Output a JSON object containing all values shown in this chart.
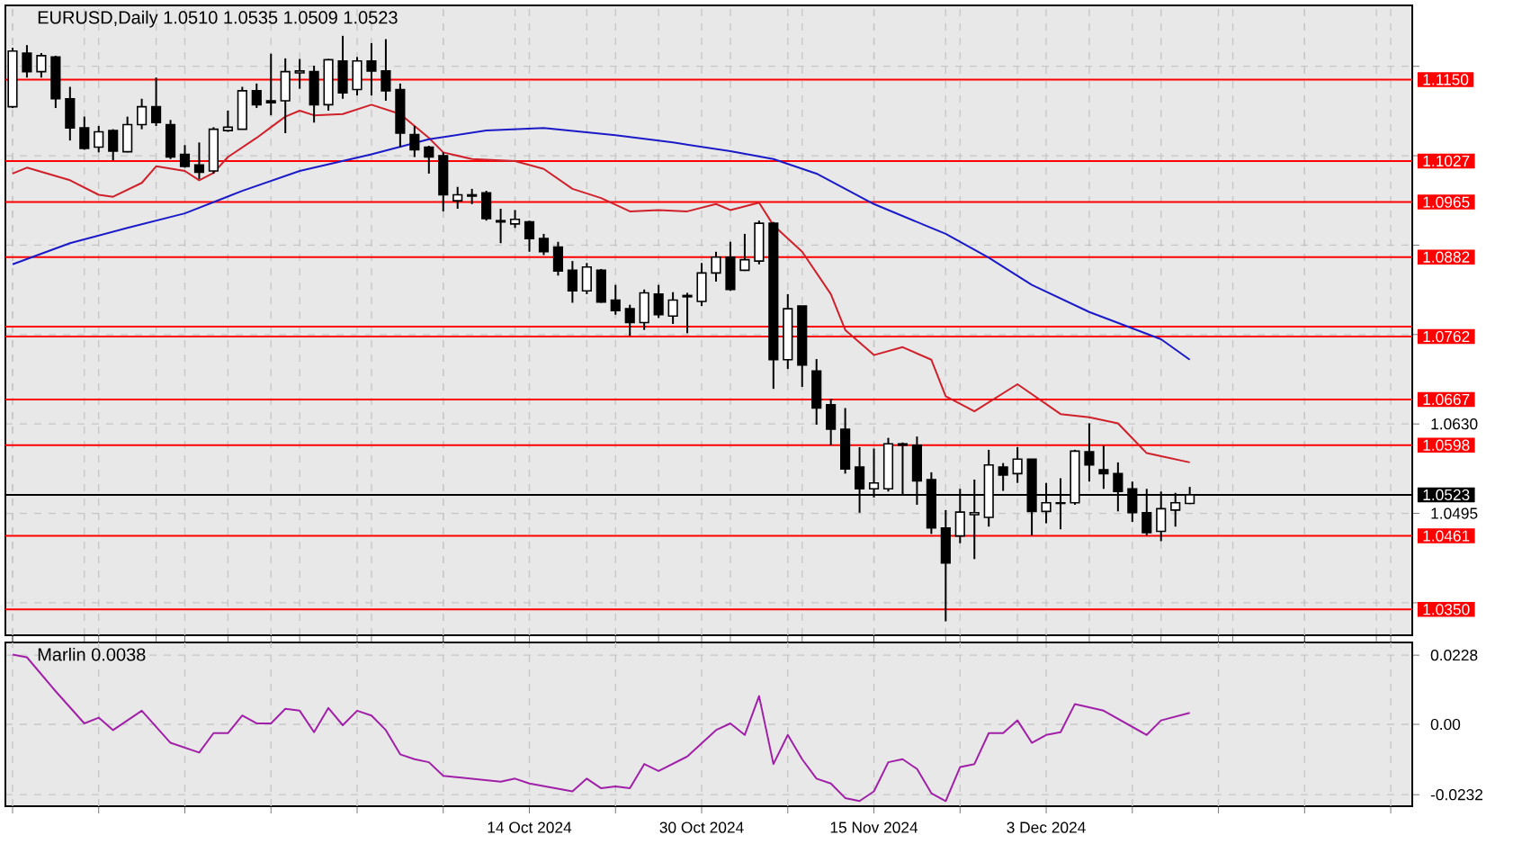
{
  "chart_data": [
    {
      "type": "candlestick",
      "title": "EURUSD,Daily  1.0510 1.0535 1.0509 1.0523",
      "categories": [
        null,
        null,
        null,
        null,
        null,
        null,
        null,
        null,
        null,
        null,
        null,
        null,
        null,
        null,
        null,
        null,
        null,
        null,
        null,
        null,
        null,
        null,
        null,
        null,
        null,
        null,
        null,
        null,
        null,
        null,
        null,
        null,
        null,
        null,
        null,
        null,
        null,
        null,
        null,
        null,
        null,
        null,
        null,
        null,
        null,
        null,
        null,
        null,
        null,
        null,
        null,
        null,
        null,
        null,
        null,
        null,
        null,
        null,
        null,
        null,
        null,
        null,
        null,
        null,
        null,
        null,
        null,
        null,
        null,
        null,
        null,
        null,
        null,
        null,
        null,
        null,
        null,
        null,
        null,
        null,
        null,
        null,
        null,
        null,
        null,
        null,
        null,
        null,
        null,
        null,
        null,
        null,
        null,
        null,
        null,
        null,
        null,
        null
      ],
      "ohlc": [
        [
          1.1109,
          1.1198,
          1.1107,
          1.1193
        ],
        [
          1.119,
          1.1202,
          1.1153,
          1.1162
        ],
        [
          1.1162,
          1.119,
          1.1153,
          1.1186
        ],
        [
          1.1184,
          1.1186,
          1.1107,
          1.1121
        ],
        [
          1.1121,
          1.1139,
          1.1058,
          1.1077
        ],
        [
          1.1077,
          1.1094,
          1.1044,
          1.1046
        ],
        [
          1.1048,
          1.108,
          1.104,
          1.1071
        ],
        [
          1.1073,
          1.1075,
          1.1028,
          1.1042
        ],
        [
          1.1041,
          1.1094,
          1.104,
          1.1082
        ],
        [
          1.1082,
          1.1121,
          1.1075,
          1.1109
        ],
        [
          1.1109,
          1.1153,
          1.108,
          1.1085
        ],
        [
          1.1082,
          1.1089,
          1.103,
          1.1033
        ],
        [
          1.1037,
          1.1051,
          1.1017,
          1.1019
        ],
        [
          1.1021,
          1.1055,
          1.1,
          1.101
        ],
        [
          1.1012,
          1.1078,
          1.1008,
          1.1075
        ],
        [
          1.1073,
          1.1103,
          1.1071,
          1.1078
        ],
        [
          1.1075,
          1.1139,
          1.1075,
          1.1133
        ],
        [
          1.1133,
          1.1144,
          1.1107,
          1.1112
        ],
        [
          1.1118,
          1.1189,
          1.1096,
          1.1115
        ],
        [
          1.1118,
          1.1182,
          1.1069,
          1.1162
        ],
        [
          1.116,
          1.1181,
          1.1136,
          1.1163
        ],
        [
          1.1162,
          1.1171,
          1.1085,
          1.1112
        ],
        [
          1.1112,
          1.1181,
          1.1103,
          1.118
        ],
        [
          1.1178,
          1.1216,
          1.1121,
          1.113
        ],
        [
          1.1135,
          1.1184,
          1.1126,
          1.1178
        ],
        [
          1.1178,
          1.1205,
          1.1126,
          1.1163
        ],
        [
          1.1163,
          1.1211,
          1.1118,
          1.1133
        ],
        [
          1.1135,
          1.1144,
          1.1048,
          1.1069
        ],
        [
          1.1067,
          1.108,
          1.1033,
          1.1044
        ],
        [
          1.1048,
          1.105,
          1.1008,
          1.1033
        ],
        [
          1.1035,
          1.104,
          1.0951,
          1.0976
        ],
        [
          1.0967,
          1.0988,
          1.0955,
          1.0976
        ],
        [
          1.0976,
          1.0985,
          1.0962,
          1.0974
        ],
        [
          1.0979,
          1.0982,
          1.0937,
          1.094
        ],
        [
          1.0937,
          1.0955,
          1.0903,
          1.0935
        ],
        [
          1.0932,
          1.0953,
          1.0926,
          1.0939
        ],
        [
          1.0935,
          1.0937,
          1.089,
          1.091
        ],
        [
          1.091,
          1.0917,
          1.0885,
          1.089
        ],
        [
          1.0897,
          1.0905,
          1.0854,
          1.0861
        ],
        [
          1.0862,
          1.0876,
          1.0813,
          1.0831
        ],
        [
          1.0831,
          1.0873,
          1.0826,
          1.0867
        ],
        [
          1.0862,
          1.0864,
          1.0813,
          1.0814
        ],
        [
          1.0817,
          1.084,
          1.0795,
          1.0801
        ],
        [
          1.0804,
          1.081,
          1.0763,
          1.0783
        ],
        [
          1.0783,
          1.0833,
          1.0772,
          1.0828
        ],
        [
          1.0826,
          1.084,
          1.079,
          1.0795
        ],
        [
          1.0793,
          1.0829,
          1.0781,
          1.0817
        ],
        [
          1.0822,
          1.0828,
          1.0767,
          1.0824
        ],
        [
          1.0815,
          1.0873,
          1.0808,
          1.0858
        ],
        [
          1.0858,
          1.089,
          1.0845,
          1.0882
        ],
        [
          1.0882,
          1.0905,
          1.0831,
          1.0833
        ],
        [
          1.0862,
          1.0917,
          1.0861,
          1.0878
        ],
        [
          1.0876,
          1.0937,
          1.0871,
          1.0933
        ],
        [
          1.0933,
          1.0935,
          1.0683,
          1.0727
        ],
        [
          1.0727,
          1.0826,
          1.0713,
          1.0804
        ],
        [
          1.0808,
          1.0808,
          1.0686,
          1.0719
        ],
        [
          1.071,
          1.0728,
          1.0629,
          1.0654
        ],
        [
          1.0659,
          1.0668,
          1.0598,
          1.0622
        ],
        [
          1.0622,
          1.0654,
          1.0555,
          1.0562
        ],
        [
          1.0565,
          1.0595,
          1.0496,
          1.0532
        ],
        [
          1.0532,
          1.0593,
          1.0519,
          1.0541
        ],
        [
          1.0532,
          1.0609,
          1.0528,
          1.06
        ],
        [
          1.0598,
          1.0602,
          1.0523,
          1.06
        ],
        [
          1.0598,
          1.0611,
          1.0508,
          1.0544
        ],
        [
          1.0546,
          1.0557,
          1.0464,
          1.0473
        ],
        [
          1.0473,
          1.05,
          1.0332,
          1.042
        ],
        [
          1.0461,
          1.0532,
          1.045,
          1.0497
        ],
        [
          1.0493,
          1.0546,
          1.0426,
          1.0496
        ],
        [
          1.0489,
          1.0591,
          1.0475,
          1.0568
        ],
        [
          1.0565,
          1.0571,
          1.0529,
          1.0553
        ],
        [
          1.0555,
          1.0595,
          1.0541,
          1.0577
        ],
        [
          1.0577,
          1.0577,
          1.0462,
          1.0498
        ],
        [
          1.0498,
          1.0541,
          1.048,
          1.0511
        ],
        [
          1.051,
          1.0548,
          1.0471,
          1.0511
        ],
        [
          1.0511,
          1.0591,
          1.0508,
          1.0589
        ],
        [
          1.0588,
          1.0631,
          1.0543,
          1.0568
        ],
        [
          1.0561,
          1.0597,
          1.0532,
          1.0555
        ],
        [
          1.0555,
          1.0572,
          1.0498,
          1.0528
        ],
        [
          1.0532,
          1.0543,
          1.0482,
          1.0496
        ],
        [
          1.0496,
          1.0532,
          1.0462,
          1.0466
        ],
        [
          1.0468,
          1.0528,
          1.0453,
          1.0502
        ],
        [
          1.05,
          1.0526,
          1.0475,
          1.0511
        ],
        [
          1.051,
          1.0535,
          1.0509,
          1.0523
        ],
        null,
        null,
        null,
        null,
        null,
        null,
        null,
        null,
        null,
        null,
        null,
        null,
        null,
        null,
        null
      ],
      "series": [
        {
          "type": "line",
          "color": "#d0202a",
          "values": [
            1.1008,
            1.1017,
            null,
            null,
            1.0998,
            null,
            1.0976,
            1.0973,
            null,
            1.0994,
            1.1019,
            null,
            1.1012,
            1.0998,
            1.1009,
            1.1033,
            null,
            1.1062,
            1.1078,
            1.1094,
            1.1103,
            1.1096,
            null,
            1.1098,
            null,
            1.1112,
            null,
            1.1098,
            1.108,
            1.1062,
            1.104,
            null,
            1.103,
            null,
            null,
            1.1027,
            null,
            1.1015,
            null,
            1.0985,
            null,
            1.0971,
            null,
            1.0951,
            null,
            1.0953,
            null,
            1.0951,
            null,
            1.0962,
            1.0953,
            null,
            1.0964,
            1.093,
            null,
            1.089,
            null,
            1.0826,
            1.0772,
            null,
            1.0734,
            null,
            1.0746,
            null,
            1.0727,
            1.0672,
            null,
            1.0649,
            null,
            null,
            1.069,
            null,
            null,
            1.0645,
            null,
            1.064,
            null,
            1.0631,
            null,
            1.0586,
            null,
            null,
            1.0572,
            null,
            null,
            null,
            null,
            null,
            null,
            null,
            null,
            null,
            null,
            null,
            null,
            null,
            null,
            null
          ]
        },
        {
          "type": "line",
          "color": "#1a1ac8",
          "values": [
            1.0871,
            null,
            null,
            null,
            1.0903,
            null,
            null,
            null,
            1.0926,
            null,
            null,
            null,
            1.0948,
            null,
            null,
            null,
            1.0982,
            null,
            null,
            null,
            1.1012,
            null,
            null,
            null,
            null,
            1.1037,
            null,
            null,
            null,
            1.106,
            null,
            null,
            null,
            1.1073,
            null,
            null,
            null,
            1.1077,
            null,
            null,
            null,
            null,
            1.1066,
            null,
            null,
            null,
            1.1055,
            null,
            null,
            null,
            1.1042,
            null,
            null,
            1.103,
            null,
            null,
            1.1008,
            null,
            null,
            null,
            1.0962,
            null,
            null,
            null,
            null,
            1.0917,
            null,
            null,
            1.0881,
            null,
            null,
            1.084,
            null,
            null,
            null,
            1.0799,
            null,
            null,
            null,
            null,
            1.0758,
            null,
            1.0727,
            null,
            null,
            null,
            null,
            null,
            null,
            null,
            null,
            null,
            null,
            null,
            null,
            null,
            null,
            null
          ]
        }
      ],
      "ylim": [
        1.0311,
        1.1262
      ],
      "yticks": [
        {
          "value": 1.117,
          "label": null
        },
        {
          "value": 1.1035,
          "label": null
        },
        {
          "value": 1.09,
          "label": null
        },
        {
          "value": 1.0765,
          "label": null
        },
        {
          "value": 1.063,
          "label": "1.0630"
        },
        {
          "value": 1.0495,
          "label": "1.0495"
        },
        {
          "value": 1.036,
          "label": null
        }
      ],
      "ref_lines": [
        {
          "axis": "y",
          "value": 1.115,
          "label": "1.1150",
          "color": "#ff0000"
        },
        {
          "axis": "y",
          "value": 1.1027,
          "label": "1.1027",
          "color": "#ff0000"
        },
        {
          "axis": "y",
          "value": 1.0965,
          "label": "1.0965",
          "color": "#ff0000"
        },
        {
          "axis": "y",
          "value": 1.0882,
          "label": "1.0882",
          "color": "#ff0000"
        },
        {
          "axis": "y",
          "value": 1.0777,
          "color": "#ff0000"
        },
        {
          "axis": "y",
          "value": 1.0762,
          "label": "1.0762",
          "color": "#ff0000"
        },
        {
          "axis": "y",
          "value": 1.0667,
          "label": "1.0667",
          "color": "#ff0000"
        },
        {
          "axis": "y",
          "value": 1.0598,
          "label": "1.0598",
          "color": "#ff0000"
        },
        {
          "axis": "y",
          "value": 1.0523,
          "label": "1.0523",
          "color": "#000000"
        },
        {
          "axis": "y",
          "value": 1.0461,
          "label": "1.0461",
          "color": "#ff0000"
        },
        {
          "axis": "y",
          "value": 1.035,
          "label": "1.0350",
          "color": "#ff0000"
        }
      ],
      "grid": true,
      "tick_labels": "y"
    },
    {
      "type": "line",
      "title": "Marlin 0.0038",
      "categories": [
        null,
        null,
        null,
        null,
        null,
        null,
        null,
        null,
        null,
        null,
        null,
        null,
        null,
        null,
        null,
        null,
        null,
        null,
        null,
        null,
        null,
        null,
        null,
        null,
        null,
        null,
        null,
        null,
        null,
        null,
        null,
        null,
        null,
        null,
        null,
        null,
        "14 Oct 2024",
        null,
        null,
        null,
        null,
        null,
        null,
        null,
        null,
        null,
        null,
        null,
        "30 Oct 2024",
        null,
        null,
        null,
        null,
        null,
        null,
        null,
        null,
        null,
        null,
        null,
        "15 Nov 2024",
        null,
        null,
        null,
        null,
        null,
        null,
        null,
        null,
        null,
        null,
        null,
        "3 Dec 2024",
        null,
        null,
        null,
        null,
        null,
        null,
        null,
        null,
        null,
        null,
        null,
        null,
        null,
        null,
        null,
        null,
        null,
        null,
        null,
        null,
        null,
        null,
        null,
        null,
        null
      ],
      "series": [
        {
          "color": "#a020a8",
          "values": [
            0.023,
            0.0221,
            null,
            0.0109,
            null,
            0.0003,
            0.0022,
            -0.0019,
            null,
            0.0045,
            null,
            -0.0061,
            null,
            -0.0093,
            -0.0029,
            -0.0029,
            0.0029,
            0.0003,
            0.0003,
            0.0051,
            0.0045,
            -0.0026,
            0.0054,
            -0.0003,
            0.0045,
            0.0029,
            -0.0019,
            -0.0099,
            -0.0115,
            -0.0125,
            -0.017,
            null,
            null,
            null,
            -0.0189,
            -0.0179,
            -0.0195,
            null,
            null,
            -0.0221,
            -0.0179,
            -0.0211,
            -0.0205,
            -0.0211,
            -0.0131,
            -0.0154,
            null,
            -0.0106,
            null,
            -0.0019,
            0.0003,
            -0.0035,
            0.0093,
            -0.0131,
            -0.0035,
            -0.0115,
            -0.0179,
            -0.0195,
            -0.0243,
            -0.0253,
            -0.0221,
            -0.0125,
            -0.0115,
            -0.0147,
            -0.0227,
            -0.0253,
            -0.0141,
            -0.0131,
            -0.0029,
            -0.0029,
            0.0013,
            -0.0061,
            -0.0035,
            -0.0026,
            0.0067,
            null,
            0.0045,
            null,
            null,
            -0.0035,
            0.0013,
            null,
            0.0038,
            null,
            null,
            null,
            null,
            null,
            null,
            null,
            null,
            null,
            null,
            null,
            null,
            null,
            null,
            null
          ]
        }
      ],
      "ylim": [
        -0.027,
        0.027
      ],
      "yticks": [
        0.0228,
        {
          "value": 0,
          "label": "0.00"
        },
        -0.0232
      ],
      "grid": true
    }
  ]
}
